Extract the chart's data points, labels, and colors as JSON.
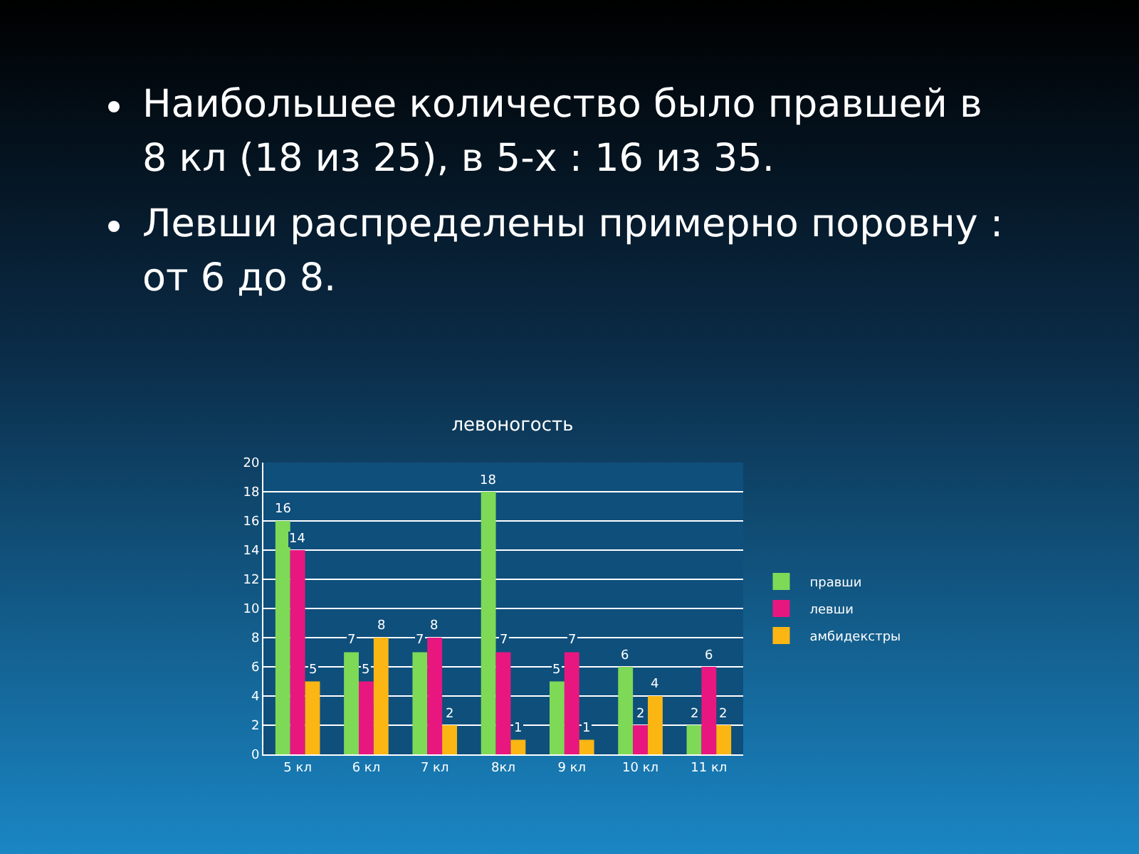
{
  "chart_data": {
    "type": "bar",
    "title": "левоногость",
    "annotations": [
      "Наибольшее количество было правшей в 8 кл (18 из 25), в 5-х : 16 из 35.",
      "Левши распределены примерно поровну : от 6 до 8."
    ],
    "categories": [
      "5 кл",
      "6 кл",
      "7 кл",
      "8кл",
      "9 кл",
      "10 кл",
      "11 кл"
    ],
    "series": [
      {
        "name": "правши",
        "color": "#7ed957",
        "values": [
          16,
          7,
          7,
          18,
          5,
          6,
          2
        ]
      },
      {
        "name": "левши",
        "color": "#e8177f",
        "values": [
          14,
          5,
          8,
          7,
          7,
          2,
          6
        ]
      },
      {
        "name": "амбидекстры",
        "color": "#fbb614",
        "values": [
          5,
          8,
          2,
          1,
          1,
          4,
          2
        ]
      }
    ],
    "ylim": [
      0,
      20
    ],
    "yticks": [
      0,
      2,
      4,
      6,
      8,
      10,
      12,
      14,
      16,
      18,
      20
    ],
    "grid": "y",
    "legend": "right",
    "data_labels": true
  }
}
